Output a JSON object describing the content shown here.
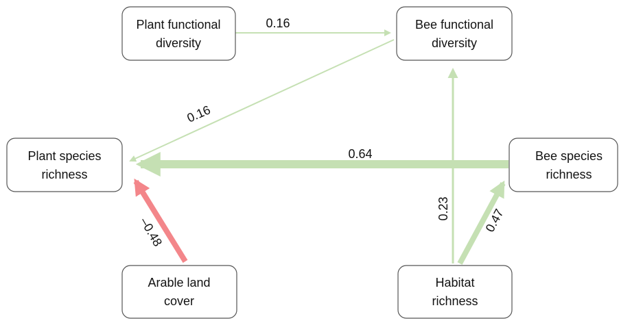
{
  "nodes": [
    {
      "label_lines": [
        "Plant functional",
        "diversity"
      ]
    },
    {
      "label_lines": [
        "Bee functional",
        "diversity"
      ]
    },
    {
      "label_lines": [
        "Plant species",
        "richness"
      ]
    },
    {
      "label_lines": [
        "Bee species",
        "richness"
      ]
    },
    {
      "label_lines": [
        "Arable land",
        "cover"
      ]
    },
    {
      "label_lines": [
        "Habitat",
        "richness"
      ]
    }
  ],
  "edges": [
    {
      "label": "0.16"
    },
    {
      "label": "0.16"
    },
    {
      "label": "0.64"
    },
    {
      "label": "–0.48"
    },
    {
      "label": "0.23"
    },
    {
      "label": "0.47"
    }
  ]
}
